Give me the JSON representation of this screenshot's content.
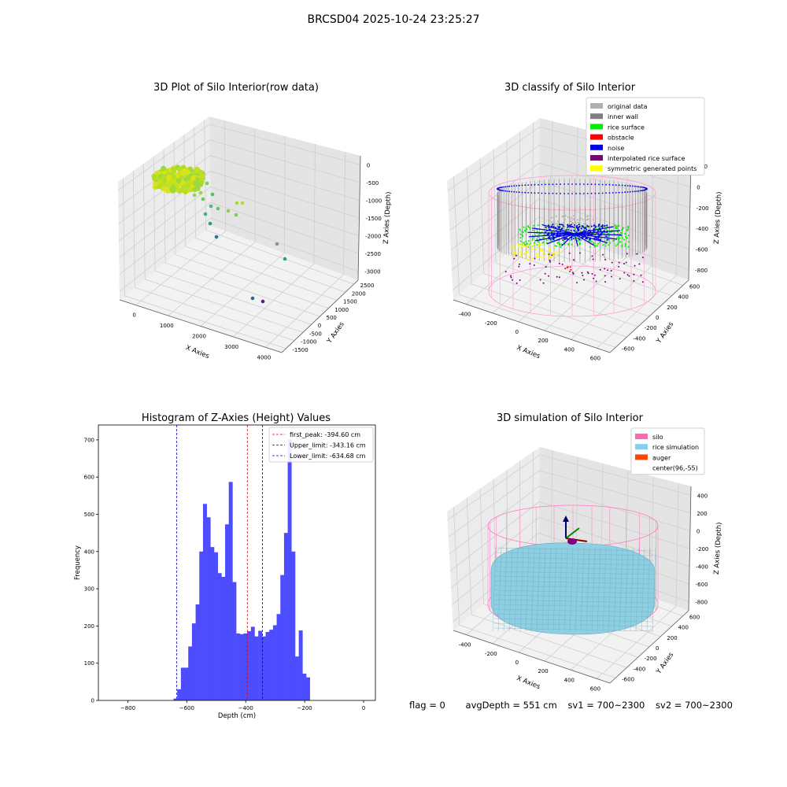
{
  "figure": {
    "title": "BRCSD04 2025-10-24 23:25:27",
    "status": {
      "flag": "flag = 0",
      "avg_depth": "avgDepth = 551 cm",
      "sv1": "sv1 = 700~2300",
      "sv2": "sv2 = 700~2300"
    }
  },
  "chart_data": [
    {
      "type": "scatter",
      "title": "3D Plot of Silo Interior(row data)",
      "xlabel": "X Axies",
      "ylabel": "Y Axies",
      "zlabel": "Z Axies (Depth)",
      "x_ticks": [
        0,
        1000,
        2000,
        3000,
        4000
      ],
      "y_ticks": [
        -1500,
        -1000,
        -500,
        0,
        500,
        1000,
        1500,
        2000,
        2500
      ],
      "z_ticks": [
        0,
        -500,
        -1000,
        -1500,
        -2000,
        -2500,
        -3000
      ],
      "grid": true
    },
    {
      "type": "scatter",
      "title": "3D classify of Silo Interior",
      "xlabel": "X Axies",
      "ylabel": "Y Axies",
      "zlabel": "Z Axies (Depth)",
      "x_ticks": [
        -400,
        -200,
        0,
        200,
        400,
        600
      ],
      "y_ticks": [
        -600,
        -400,
        -200,
        0,
        200,
        400,
        600
      ],
      "z_ticks": [
        200,
        0,
        -200,
        -400,
        -600,
        -800
      ],
      "grid": true,
      "legend_position": "top-right",
      "legend": [
        {
          "name": "original data",
          "color": "#b0b0b0"
        },
        {
          "name": "inner wall",
          "color": "#808080"
        },
        {
          "name": "rice surface",
          "color": "#00ee00"
        },
        {
          "name": "obstacle",
          "color": "#ff0000"
        },
        {
          "name": "noise",
          "color": "#0000ee"
        },
        {
          "name": "interpolated rice surface",
          "color": "#800080"
        },
        {
          "name": "symmetric generated points",
          "color": "#ffff00"
        }
      ]
    },
    {
      "type": "bar",
      "title": "Histogram of Z-Axies (Height) Values",
      "xlabel": "Depth (cm)",
      "ylabel": "Frequency",
      "xlim": [
        -900,
        40
      ],
      "ylim": [
        0,
        740
      ],
      "x_ticks": [
        -800,
        -600,
        -400,
        -200,
        0
      ],
      "y_ticks": [
        0,
        100,
        200,
        300,
        400,
        500,
        600,
        700
      ],
      "bin_start": -645,
      "bin_width": 12.5,
      "values": [
        5,
        30,
        88,
        88,
        145,
        207,
        258,
        400,
        528,
        492,
        412,
        398,
        342,
        332,
        473,
        587,
        318,
        180,
        178,
        180,
        186,
        198,
        172,
        187,
        172,
        184,
        190,
        202,
        232,
        337,
        450,
        702,
        400,
        118,
        188,
        72,
        62
      ],
      "bar_color": "#4d4dff",
      "vlines": [
        {
          "name": "first_peak: -394.60 cm",
          "x": -394.6,
          "color": "#dd0000"
        },
        {
          "name": "Upper_limit: -343.16 cm",
          "x": -343.16,
          "color": "#0000cc"
        },
        {
          "name": "Lower_limit: -634.68 cm",
          "x": -634.68,
          "color": "#0000cc"
        }
      ],
      "legend_position": "top-right"
    },
    {
      "type": "scatter",
      "title": "3D simulation of Silo Interior",
      "xlabel": "X Axies",
      "ylabel": "Y Axies",
      "zlabel": "Z Axies (Depth)",
      "x_ticks": [
        -400,
        -200,
        0,
        200,
        400,
        600
      ],
      "y_ticks": [
        -600,
        -400,
        -200,
        0,
        200,
        400,
        600
      ],
      "z_ticks": [
        400,
        200,
        0,
        -200,
        -400,
        -600,
        -800
      ],
      "grid": true,
      "legend_position": "top-right",
      "legend": [
        {
          "name": "silo",
          "color": "#ff69b4"
        },
        {
          "name": "rice simulation",
          "color": "#87ceeb"
        },
        {
          "name": "auger",
          "color": "#ff4500"
        },
        {
          "name": "center(96,-55)",
          "color": ""
        }
      ]
    }
  ]
}
